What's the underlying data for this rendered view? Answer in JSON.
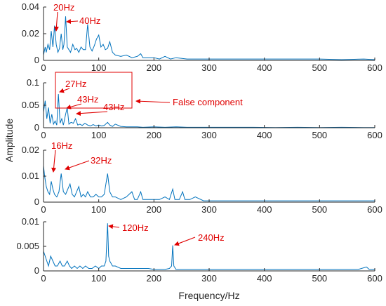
{
  "chart_data": [
    {
      "type": "line",
      "xlim": [
        0,
        600
      ],
      "ylim": [
        0,
        0.04
      ],
      "xticks": [
        "0",
        "100",
        "200",
        "300",
        "400",
        "500",
        "600"
      ],
      "yticks": [
        "0",
        "0.02",
        "0.04"
      ],
      "series": [
        {
          "x": [
            0,
            3,
            5,
            8,
            11,
            14,
            17,
            20,
            23,
            26,
            29,
            32,
            35,
            37,
            40,
            43,
            46,
            49,
            53,
            57,
            60,
            64,
            68,
            72,
            76,
            80,
            84,
            88,
            92,
            96,
            100,
            104,
            108,
            112,
            116,
            120,
            125,
            130,
            140,
            150,
            160,
            170,
            176,
            180,
            190,
            200,
            210,
            220,
            230,
            240,
            260,
            280,
            300,
            340,
            380,
            420,
            460,
            500,
            540,
            580,
            600
          ],
          "y": [
            0.004,
            0.01,
            0.006,
            0.012,
            0.008,
            0.022,
            0.01,
            0.026,
            0.012,
            0.006,
            0.009,
            0.02,
            0.008,
            0.012,
            0.033,
            0.01,
            0.008,
            0.006,
            0.012,
            0.008,
            0.009,
            0.006,
            0.01,
            0.008,
            0.008,
            0.027,
            0.01,
            0.007,
            0.011,
            0.016,
            0.019,
            0.01,
            0.012,
            0.008,
            0.009,
            0.014,
            0.006,
            0.004,
            0.003,
            0.004,
            0.002,
            0.003,
            0.005,
            0.002,
            0.002,
            0.002,
            0.001,
            0.003,
            0.001,
            0.002,
            0.001,
            0.001,
            0.001,
            0.001,
            0.001,
            0.001,
            0.001,
            0.001,
            0.0005,
            0.001,
            0.0005
          ]
        }
      ],
      "annotations": [
        {
          "text": "20Hz",
          "x": 17,
          "y": 0.025
        },
        {
          "text": "40Hz",
          "x": 40,
          "y": 0.032
        }
      ]
    },
    {
      "type": "line",
      "xlim": [
        0,
        600
      ],
      "ylim": [
        0,
        0.1
      ],
      "xticks": [
        "0",
        "100",
        "200",
        "300",
        "400",
        "500",
        "600"
      ],
      "yticks": [
        "0",
        "0.05",
        "0.1"
      ],
      "series": [
        {
          "x": [
            0,
            3,
            6,
            9,
            12,
            15,
            18,
            21,
            24,
            27,
            30,
            33,
            36,
            40,
            43,
            46,
            50,
            54,
            58,
            62,
            66,
            70,
            75,
            80,
            85,
            90,
            95,
            100,
            105,
            110,
            116,
            120,
            125,
            130,
            140,
            150,
            160,
            170,
            180,
            200,
            220,
            240,
            260,
            280,
            300,
            340,
            380,
            420,
            460,
            500,
            540,
            580,
            600
          ],
          "y": [
            0.035,
            0.06,
            0.02,
            0.045,
            0.01,
            0.03,
            0.008,
            0.015,
            0.006,
            0.075,
            0.01,
            0.02,
            0.006,
            0.03,
            0.045,
            0.008,
            0.012,
            0.01,
            0.02,
            0.006,
            0.008,
            0.005,
            0.01,
            0.006,
            0.004,
            0.007,
            0.004,
            0.006,
            0.004,
            0.005,
            0.012,
            0.006,
            0.003,
            0.008,
            0.003,
            0.002,
            0.002,
            0.002,
            0.001,
            0.002,
            0.001,
            0.002,
            0.001,
            0.001,
            0.001,
            0.001,
            0.001,
            0.0005,
            0.001,
            0.0005,
            0.001,
            0.0005,
            0.0005
          ]
        }
      ],
      "annotations": [
        {
          "text": "27Hz",
          "x": 27,
          "y": 0.075
        },
        {
          "text": "43Hz",
          "x": 43,
          "y": 0.045
        },
        {
          "text": "43Hz",
          "x": 50,
          "y": 0.03
        },
        {
          "text": "False component",
          "x": 160,
          "y": 0.055
        }
      ]
    },
    {
      "type": "line",
      "xlim": [
        0,
        600
      ],
      "ylim": [
        0,
        0.02
      ],
      "xticks": [
        "0",
        "100",
        "200",
        "300",
        "400",
        "500",
        "600"
      ],
      "yticks": [
        "0",
        "0.01",
        "0.02"
      ],
      "series": [
        {
          "x": [
            0,
            2,
            5,
            8,
            11,
            14,
            17,
            20,
            24,
            28,
            32,
            36,
            40,
            44,
            48,
            52,
            56,
            60,
            64,
            68,
            72,
            76,
            80,
            85,
            90,
            95,
            100,
            105,
            110,
            116,
            120,
            125,
            130,
            140,
            150,
            160,
            165,
            170,
            176,
            180,
            190,
            200,
            210,
            220,
            228,
            234,
            238,
            246,
            252,
            256,
            265,
            275,
            290,
            300,
            340,
            380,
            420,
            460,
            500,
            540,
            580,
            600
          ],
          "y": [
            0.014,
            0.01,
            0.006,
            0.004,
            0.003,
            0.008,
            0.005,
            0.003,
            0.002,
            0.004,
            0.011,
            0.004,
            0.003,
            0.005,
            0.007,
            0.003,
            0.002,
            0.004,
            0.006,
            0.002,
            0.003,
            0.002,
            0.004,
            0.002,
            0.002,
            0.003,
            0.002,
            0.002,
            0.003,
            0.011,
            0.004,
            0.002,
            0.002,
            0.001,
            0.002,
            0.004,
            0.001,
            0.001,
            0.004,
            0.001,
            0.001,
            0.001,
            0.001,
            0.002,
            0.001,
            0.005,
            0.001,
            0.001,
            0.004,
            0.001,
            0.001,
            0.002,
            0.0005,
            0.0005,
            0.0005,
            0.0005,
            0.0005,
            0.0005,
            0.0005,
            0.0005,
            0.0005,
            0.0005
          ]
        }
      ],
      "annotations": [
        {
          "text": "16Hz",
          "x": 14,
          "y": 0.008
        },
        {
          "text": "32Hz",
          "x": 32,
          "y": 0.011
        }
      ]
    },
    {
      "type": "line",
      "xlim": [
        0,
        600
      ],
      "ylim": [
        0,
        0.01
      ],
      "xticks": [
        "0",
        "100",
        "200",
        "300",
        "400",
        "500",
        "600"
      ],
      "yticks": [
        "0",
        "0.005",
        "0.01"
      ],
      "xlabel": "Frequency/Hz",
      "series": [
        {
          "x": [
            0,
            3,
            6,
            9,
            13,
            17,
            21,
            25,
            30,
            34,
            38,
            43,
            47,
            51,
            56,
            61,
            66,
            71,
            76,
            82,
            88,
            94,
            100,
            105,
            110,
            113,
            116,
            118,
            120,
            125,
            130,
            140,
            150,
            160,
            175,
            190,
            200,
            210,
            220,
            228,
            232,
            234,
            236,
            240,
            250,
            270,
            290,
            310,
            340,
            380,
            420,
            460,
            500,
            540,
            570,
            585,
            590,
            600
          ],
          "y": [
            0.004,
            0.003,
            0.002,
            0.001,
            0.003,
            0.002,
            0.001,
            0.001,
            0.002,
            0.001,
            0.001,
            0.002,
            0.001,
            0.0005,
            0.001,
            0.0005,
            0.001,
            0.0005,
            0.001,
            0.0005,
            0.0005,
            0.001,
            0.0005,
            0.001,
            0.001,
            0.002,
            0.0097,
            0.003,
            0.002,
            0.001,
            0.001,
            0.0005,
            0.0005,
            0.0005,
            0.0005,
            0.0005,
            0.0003,
            0.0003,
            0.0003,
            0.0005,
            0.001,
            0.0052,
            0.001,
            0.0003,
            0.0003,
            0.0003,
            0.0003,
            0.0003,
            0.0003,
            0.0003,
            0.0003,
            0.0003,
            0.0003,
            0.0003,
            0.0003,
            0.0008,
            0.0003,
            0.0003
          ]
        }
      ],
      "annotations": [
        {
          "text": "120Hz",
          "x": 118,
          "y": 0.0097
        },
        {
          "text": "240Hz",
          "x": 235,
          "y": 0.006
        }
      ]
    }
  ],
  "shared_ylabel": "Amplitude",
  "colors": {
    "series": "#0072bd",
    "annotation": "#e00000",
    "axis": "#262626"
  }
}
